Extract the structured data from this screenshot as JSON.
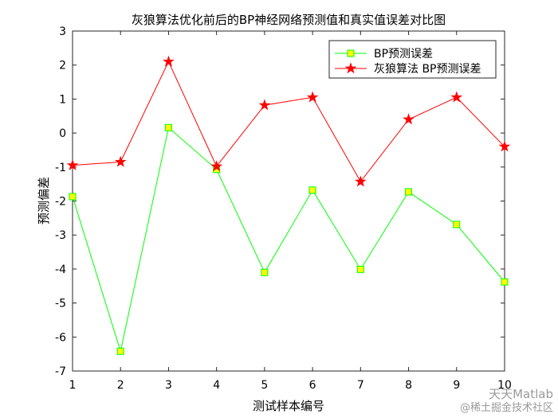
{
  "chart_data": {
    "type": "line",
    "title": "灰狼算法优化前后的BP神经网络预测值和真实值误差对比图",
    "xlabel": "测试样本编号",
    "ylabel": "预测偏差",
    "xlim": [
      1,
      10
    ],
    "ylim": [
      -7,
      3
    ],
    "x": [
      1,
      2,
      3,
      4,
      5,
      6,
      7,
      8,
      9,
      10
    ],
    "xticks": [
      "1",
      "2",
      "3",
      "4",
      "5",
      "6",
      "7",
      "8",
      "9",
      "10"
    ],
    "yticks": [
      "3",
      "2",
      "1",
      "0",
      "-1",
      "-2",
      "-3",
      "-4",
      "-5",
      "-6",
      "-7"
    ],
    "grid": false,
    "legend_position": "top-right",
    "series": [
      {
        "name": "BP预测误差",
        "color": "#00ff00",
        "marker": "square",
        "marker_fill": "#ffff00",
        "values": [
          -1.87,
          -6.42,
          0.16,
          -1.07,
          -4.1,
          -1.68,
          -4.01,
          -1.73,
          -2.69,
          -4.38
        ]
      },
      {
        "name": "灰狼算法 BP预测误差",
        "color": "#ff0000",
        "marker": "star",
        "marker_fill": "#ff0000",
        "values": [
          -0.95,
          -0.85,
          2.1,
          -0.98,
          0.82,
          1.05,
          -1.43,
          0.4,
          1.05,
          -0.4
        ]
      }
    ]
  },
  "watermark": {
    "line1": "天天Matlab",
    "line2": "@稀土掘金技术社区"
  }
}
